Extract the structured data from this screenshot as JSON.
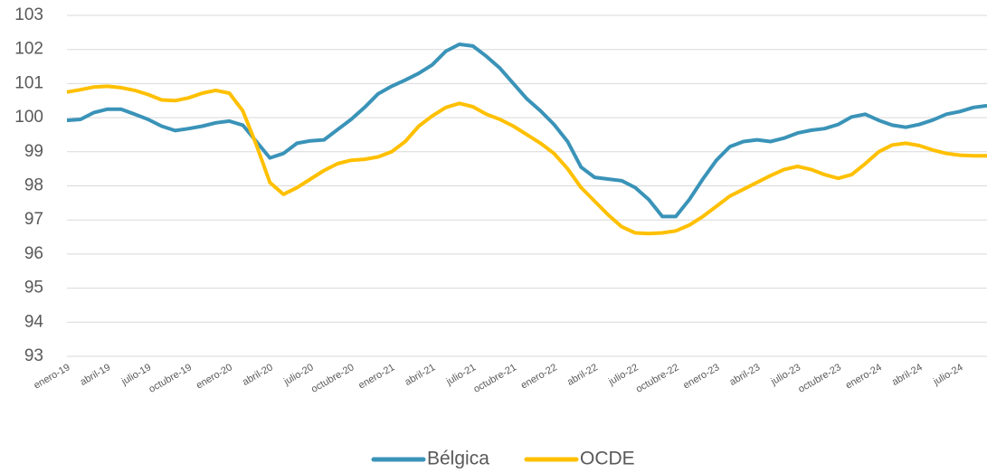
{
  "chart_data": {
    "type": "line",
    "categories": [
      "enero-19",
      null,
      null,
      "abril-19",
      null,
      null,
      "julio-19",
      null,
      null,
      "octubre-19",
      null,
      null,
      "enero-20",
      null,
      null,
      "abril-20",
      null,
      null,
      "julio-20",
      null,
      null,
      "octubre-20",
      null,
      null,
      "enero-21",
      null,
      null,
      "abril-21",
      null,
      null,
      "julio-21",
      null,
      null,
      "octubre-21",
      null,
      null,
      "enero-22",
      null,
      null,
      "abril-22",
      null,
      null,
      "julio-22",
      null,
      null,
      "octubre-22",
      null,
      null,
      "enero-23",
      null,
      null,
      "abril-23",
      null,
      null,
      "julio-23",
      null,
      null,
      "octubre-23",
      null,
      null,
      "enero-24",
      null,
      null,
      "abril-24",
      null,
      null,
      "julio-24",
      null,
      null
    ],
    "series": [
      {
        "name": "Bélgica",
        "color": "#3a93b8",
        "values": [
          99.92,
          99.95,
          100.15,
          100.25,
          100.25,
          100.1,
          99.95,
          99.75,
          99.62,
          99.68,
          99.75,
          99.85,
          99.9,
          99.78,
          99.3,
          98.82,
          98.95,
          99.25,
          99.32,
          99.35,
          99.65,
          99.95,
          100.3,
          100.7,
          100.92,
          101.1,
          101.3,
          101.55,
          101.95,
          102.15,
          102.1,
          101.8,
          101.45,
          101.0,
          100.55,
          100.2,
          99.8,
          99.3,
          98.55,
          98.25,
          98.2,
          98.15,
          97.95,
          97.6,
          97.1,
          97.1,
          97.6,
          98.2,
          98.75,
          99.15,
          99.3,
          99.35,
          99.3,
          99.4,
          99.55,
          99.63,
          99.68,
          99.8,
          100.02,
          100.1,
          99.92,
          99.78,
          99.72,
          99.8,
          99.93,
          100.1,
          100.18,
          100.3,
          100.35
        ]
      },
      {
        "name": "OCDE",
        "color": "#ffc000",
        "values": [
          100.75,
          100.82,
          100.9,
          100.92,
          100.88,
          100.8,
          100.68,
          100.52,
          100.5,
          100.58,
          100.72,
          100.8,
          100.72,
          100.2,
          99.2,
          98.1,
          97.75,
          97.95,
          98.2,
          98.45,
          98.65,
          98.75,
          98.78,
          98.85,
          99.0,
          99.3,
          99.75,
          100.05,
          100.3,
          100.42,
          100.32,
          100.1,
          99.95,
          99.75,
          99.5,
          99.25,
          98.95,
          98.5,
          97.95,
          97.55,
          97.15,
          96.8,
          96.62,
          96.6,
          96.62,
          96.68,
          96.85,
          97.1,
          97.4,
          97.7,
          97.9,
          98.1,
          98.3,
          98.48,
          98.57,
          98.48,
          98.33,
          98.22,
          98.33,
          98.65,
          99.0,
          99.2,
          99.25,
          99.18,
          99.05,
          98.95,
          98.9,
          98.88,
          98.88
        ]
      }
    ],
    "ylim": [
      93,
      103
    ],
    "yticks": [
      93,
      94,
      95,
      96,
      97,
      98,
      99,
      100,
      101,
      102,
      103
    ],
    "grid": true,
    "legend": "bottom"
  }
}
